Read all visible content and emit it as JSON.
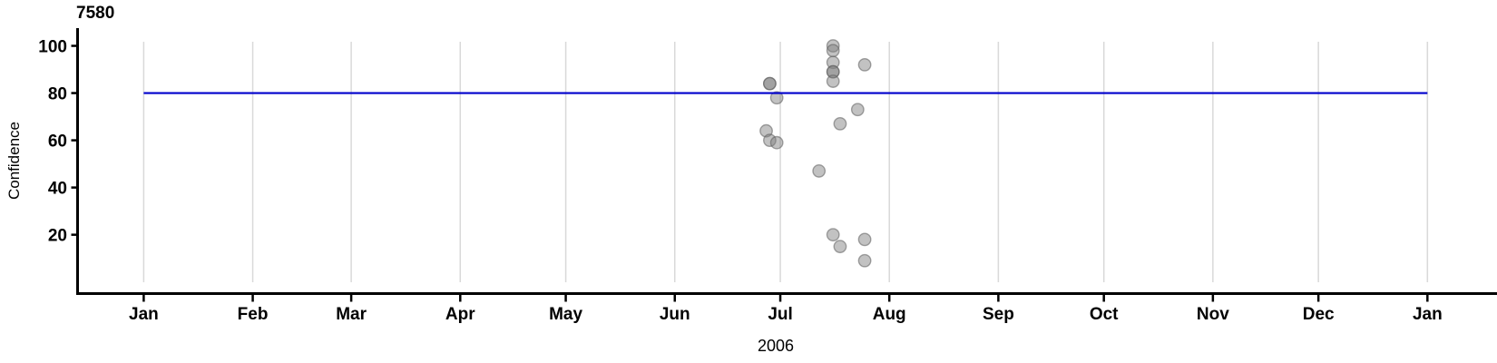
{
  "chart_data": {
    "type": "scatter",
    "title": "7580",
    "ylabel": "Confidence",
    "xlabel": "2006",
    "x_tick_labels": [
      "Jan",
      "Feb",
      "Mar",
      "Apr",
      "May",
      "Jun",
      "Jul",
      "Aug",
      "Sep",
      "Oct",
      "Nov",
      "Dec",
      "Jan"
    ],
    "y_tick_values": [
      20,
      40,
      60,
      80,
      100
    ],
    "ylim": [
      0,
      102
    ],
    "x_range": [
      "Jan 1",
      "Jan 1 (next year)"
    ],
    "grid": true,
    "gridline_color": "#d9d9d9",
    "axis_color": "#000000",
    "point_fill": "rgba(128,128,128,0.48)",
    "point_stroke": "rgba(95,95,95,0.55)",
    "reference_line": {
      "y": 80,
      "color": "#0000cc"
    },
    "points": [
      {
        "date": "Jun 27",
        "value": 64
      },
      {
        "date": "Jun 28",
        "value": 84
      },
      {
        "date": "Jun 28",
        "value": 84
      },
      {
        "date": "Jun 28",
        "value": 60
      },
      {
        "date": "Jun 30",
        "value": 78
      },
      {
        "date": "Jun 30",
        "value": 59
      },
      {
        "date": "Jul 12",
        "value": 47
      },
      {
        "date": "Jul 16",
        "value": 100
      },
      {
        "date": "Jul 16",
        "value": 98
      },
      {
        "date": "Jul 16",
        "value": 93
      },
      {
        "date": "Jul 16",
        "value": 89
      },
      {
        "date": "Jul 16",
        "value": 89
      },
      {
        "date": "Jul 16",
        "value": 85
      },
      {
        "date": "Jul 16",
        "value": 20
      },
      {
        "date": "Jul 18",
        "value": 67
      },
      {
        "date": "Jul 18",
        "value": 15
      },
      {
        "date": "Jul 23",
        "value": 73
      },
      {
        "date": "Jul 25",
        "value": 92
      },
      {
        "date": "Jul 25",
        "value": 18
      },
      {
        "date": "Jul 25",
        "value": 9
      }
    ]
  }
}
